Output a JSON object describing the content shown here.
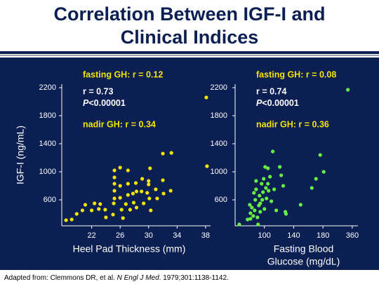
{
  "title": [
    "Correlation Between IGF-I and",
    "Clinical Indices"
  ],
  "footnote": {
    "lead": "Adapted from: Clemmons DR, et al. ",
    "journal": "N Engl J Med",
    "rest": ". 1979;301:1138-1142."
  },
  "chart_data": [
    {
      "type": "scatter",
      "xlabel": "Heel Pad Thickness (mm)",
      "ylabel": "IGF-I (ng/mL)",
      "color": "#f2e600",
      "xlim": [
        17.8,
        38.7
      ],
      "xticks": [
        22,
        26,
        30,
        34,
        38
      ],
      "ylim": [
        230,
        2250
      ],
      "yticks": [
        600,
        1000,
        1400,
        1800,
        2200
      ],
      "annotations": {
        "fasting": "fasting GH: r = 0.12",
        "r": "r = 0.73",
        "p_symbol": "P",
        "p_value": "<0.00001",
        "nadir": "nadir GH: r = 0.34"
      },
      "x": [
        18.4,
        19.2,
        19.9,
        20.7,
        21.1,
        22,
        22.4,
        23,
        23.2,
        24,
        23.9,
        25,
        25.1,
        25.2,
        25.2,
        25.2,
        25.2,
        25.2,
        26,
        26,
        26,
        26.2,
        26.4,
        26.8,
        27.1,
        27.1,
        27.1,
        27.4,
        27.8,
        27.9,
        28.2,
        28.3,
        28.3,
        29,
        29.1,
        29.3,
        29.8,
        30,
        30,
        30.2,
        30.1,
        30.3,
        31,
        31.2,
        32,
        32.1,
        33.1,
        32,
        33.2,
        38.2,
        38.1
      ],
      "values": [
        310,
        320,
        400,
        450,
        530,
        450,
        550,
        470,
        540,
        350,
        460,
        390,
        550,
        620,
        730,
        830,
        920,
        1020,
        1060,
        800,
        630,
        460,
        340,
        540,
        670,
        830,
        1020,
        460,
        690,
        560,
        840,
        720,
        490,
        720,
        900,
        550,
        700,
        820,
        870,
        1050,
        620,
        450,
        750,
        620,
        880,
        690,
        730,
        1260,
        1270,
        1080,
        2060
      ]
    },
    {
      "type": "scatter",
      "xlabel": [
        "Fasting Blood",
        "Glucose (mg/dL)"
      ],
      "color": "#66ee44",
      "x_axis_break": true,
      "xlim": [
        60,
        395
      ],
      "xticks": [
        100,
        140,
        180,
        360
      ],
      "ylim": [
        230,
        2250
      ],
      "yticks": [
        600,
        1000,
        1400,
        1800,
        2200
      ],
      "annotations": {
        "fasting": "fasting GH: r = 0.08",
        "r": "r = 0.74",
        "p_symbol": "P",
        "p_value": "<0.00001",
        "nadir": "nadir GH: r = 0.36"
      },
      "x": [
        65.7,
        81,
        81,
        82.9,
        84.8,
        86.7,
        87.6,
        88.6,
        90.5,
        92.4,
        93.3,
        94.3,
        96.2,
        97.1,
        98.1,
        99,
        100,
        101,
        102,
        102.9,
        104.8,
        105.7,
        107.6,
        109.5,
        111.4,
        113.3,
        116.2,
        121,
        122.9,
        125.7,
        128.6,
        129.5,
        149.5,
        164.8,
        170.5,
        176.2,
        184.5,
        333,
        77,
        85.7,
        88.6,
        94.3,
        91.4,
        80,
        104.8
      ],
      "values": [
        250,
        410,
        330,
        490,
        370,
        450,
        600,
        750,
        350,
        520,
        660,
        430,
        830,
        600,
        710,
        900,
        470,
        1070,
        770,
        620,
        830,
        730,
        930,
        580,
        1290,
        750,
        450,
        1070,
        950,
        800,
        430,
        400,
        530,
        770,
        900,
        1240,
        1000,
        2170,
        320,
        700,
        870,
        550,
        250,
        530,
        1050
      ]
    }
  ]
}
